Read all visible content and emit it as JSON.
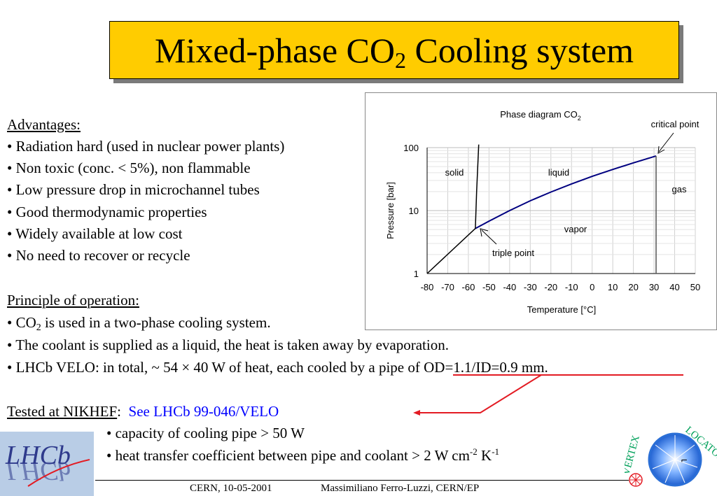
{
  "title": {
    "main": "Mixed-phase CO",
    "sub": "2",
    "rest": " Cooling system"
  },
  "advantages": {
    "heading": "Advantages:",
    "items": [
      "• Radiation hard (used in nuclear power plants)",
      "• Non toxic (conc. < 5%), non flammable",
      "• Low pressure drop in microchannel tubes",
      "• Good thermodynamic properties",
      "• Widely available at low cost",
      "• No need to recover or recycle"
    ]
  },
  "principle": {
    "heading": "Principle of operation:",
    "line1_a": "• CO",
    "line1_sub": "2",
    "line1_b": " is used in a two-phase cooling system.",
    "line2": "• The coolant is supplied as a liquid, the heat is taken away by evaporation.",
    "line3_a": "• LHCb VELO: in total, ~ 54 × 40 W of heat, each cooled by ",
    "line3_b": "a pipe of OD=1.1/ID=0.9 mm."
  },
  "tested": {
    "label": "Tested at NIKHEF",
    "colon": ":",
    "link": "See LHCb 99-046/VELO",
    "item1": "• capacity of cooling pipe > 50 W",
    "item2_a": "• heat transfer coefficient between pipe and coolant > 2 W cm",
    "item2_sup1": "-2",
    "item2_b": " K",
    "item2_sup2": "-1"
  },
  "footer": {
    "left": "CERN, 10-05-2001",
    "right": "Massimiliano Ferro-Luzzi, CERN/EP"
  },
  "logos": {
    "lhcb": "LHCb",
    "vertex": "VERTEX",
    "locator": "LOCATOR",
    "lhcb_bg": "#b9cde6",
    "lhcb_text_color": "#2e3a8c",
    "vertex_text_color": "#00a05a",
    "ring_color": "#2b6fd6"
  },
  "colors": {
    "title_bg": "#ffcc00",
    "link": "#0000ff",
    "annotation_red": "#e31b23",
    "curve": "#000080"
  },
  "chart_data": {
    "type": "line",
    "title": "Phase diagram CO",
    "title_sub": "2",
    "xlabel": "Temperature [°C]",
    "ylabel": "Pressure [bar]",
    "xlim": [
      -80,
      50
    ],
    "ylim": [
      1,
      100
    ],
    "yscale": "log",
    "xticks": [
      -80,
      -70,
      -60,
      -50,
      -40,
      -30,
      -20,
      -10,
      0,
      10,
      20,
      30,
      40,
      50
    ],
    "yticks": [
      1,
      10,
      100
    ],
    "ytick_labels": [
      "1",
      "10",
      "100"
    ],
    "grid": true,
    "series": [
      {
        "x": [
          -80,
          -56.6
        ],
        "y": [
          1,
          5.2
        ]
      },
      {
        "x": [
          -56.6,
          -50,
          -40,
          -30,
          -20,
          -10,
          0,
          10,
          20,
          31
        ],
        "y": [
          5.2,
          6.8,
          10.0,
          14.3,
          19.7,
          26.5,
          34.9,
          45.0,
          57.3,
          73.8
        ]
      },
      {
        "x": [
          -56.6,
          -56.0,
          -55.0
        ],
        "y": [
          5.2,
          20,
          120
        ]
      },
      {
        "x": [
          31,
          31
        ],
        "y": [
          73.8,
          1
        ]
      }
    ],
    "region_labels": [
      {
        "text": "solid",
        "x": -58,
        "y": 50
      },
      {
        "text": "liquid",
        "x": -15,
        "y": 50
      },
      {
        "text": "gas",
        "x": 41,
        "y": 20
      },
      {
        "text": "vapor",
        "x": -8,
        "y": 4.5
      }
    ],
    "annotations": [
      {
        "text": "critical point",
        "x": 31,
        "y": 73.8
      },
      {
        "text": "triple point",
        "x": -56.6,
        "y": 5.2
      }
    ]
  }
}
